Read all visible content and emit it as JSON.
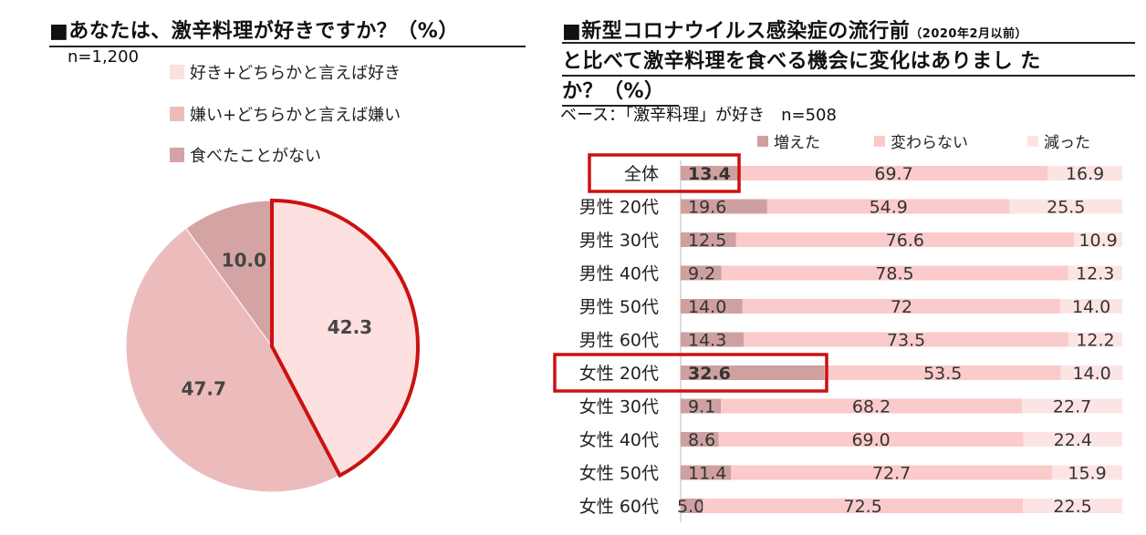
{
  "left": {
    "title": "■あなたは、激辛料理が好きですか？（%）",
    "n_label": "n=1,200",
    "legend": [
      {
        "label": "好き+どちらかと言えば好き",
        "color": "#fde0e0"
      },
      {
        "label": "嫌い+どちらかと言えば嫌い",
        "color": "#ecbcbc"
      },
      {
        "label": "食べたことがない",
        "color": "#d4a4a4"
      }
    ]
  },
  "right": {
    "title_line1": "■新型コロナウイルス感染症の流行前",
    "title_line1_small": "（2020年2月以前）",
    "title_line2": "と比べて激辛料理を食べる機会に変化はありまし た",
    "title_line3": "か？（%）",
    "base_label": "ベース：「激辛料理」が好き　n=508",
    "legend": [
      {
        "label": "増えた",
        "color": "#cfa0a0"
      },
      {
        "label": "変わらない",
        "color": "#fbcaca"
      },
      {
        "label": "減った",
        "color": "#fde4e4"
      }
    ]
  },
  "chart_data": [
    {
      "type": "pie",
      "title": "■あなたは、激辛料理が好きですか？（%）",
      "categories": [
        "好き+どちらかと言えば好き",
        "嫌い+どちらかと言えば嫌い",
        "食べたことがない"
      ],
      "values": [
        42.3,
        47.7,
        10.0
      ],
      "value_labels": [
        "42.3",
        "47.7",
        "10.0"
      ],
      "colors": [
        "#fde0e0",
        "#ecbcbc",
        "#d4a4a4"
      ],
      "highlighted_slice": "好き+どちらかと言えば好き",
      "highlight_color": "#cc1111"
    },
    {
      "type": "bar",
      "orientation": "horizontal",
      "stacked": true,
      "title": "■新型コロナウイルス感染症の流行前（2020年2月以前）と比べて激辛料理を食べる機会に変化はありました か？（%）",
      "categories": [
        "全体",
        "男性 20代",
        "男性 30代",
        "男性 40代",
        "男性 50代",
        "男性 60代",
        "女性 20代",
        "女性 30代",
        "女性 40代",
        "女性 50代",
        "女性 60代"
      ],
      "series": [
        {
          "name": "増えた",
          "color": "#cfa0a0",
          "values": [
            13.4,
            19.6,
            12.5,
            9.2,
            14.0,
            14.3,
            32.6,
            9.1,
            8.6,
            11.4,
            5.0
          ],
          "labels": [
            "13.4",
            "19.6",
            "12.5",
            "9.2",
            "14.0",
            "14.3",
            "32.6",
            "9.1",
            "8.6",
            "11.4",
            "5.0"
          ]
        },
        {
          "name": "変わらない",
          "color": "#fbcaca",
          "values": [
            69.7,
            54.9,
            76.6,
            78.5,
            72,
            73.5,
            53.5,
            68.2,
            69.0,
            72.7,
            72.5
          ],
          "labels": [
            "69.7",
            "54.9",
            "76.6",
            "78.5",
            "72",
            "73.5",
            "53.5",
            "68.2",
            "69.0",
            "72.7",
            "72.5"
          ]
        },
        {
          "name": "減った",
          "color": "#fde4e4",
          "values": [
            16.9,
            25.5,
            10.9,
            12.3,
            14.0,
            12.2,
            14.0,
            22.7,
            22.4,
            15.9,
            22.5
          ],
          "labels": [
            "16.9",
            "25.5",
            "10.9",
            "12.3",
            "14.0",
            "12.2",
            "14.0",
            "22.7",
            "22.4",
            "15.9",
            "22.5"
          ]
        }
      ],
      "xlim": [
        0,
        100
      ],
      "highlighted": [
        "全体",
        "女性 20代"
      ],
      "bold_first_segment": [
        "全体",
        "女性 20代"
      ],
      "highlight_color": "#cc1111"
    }
  ]
}
